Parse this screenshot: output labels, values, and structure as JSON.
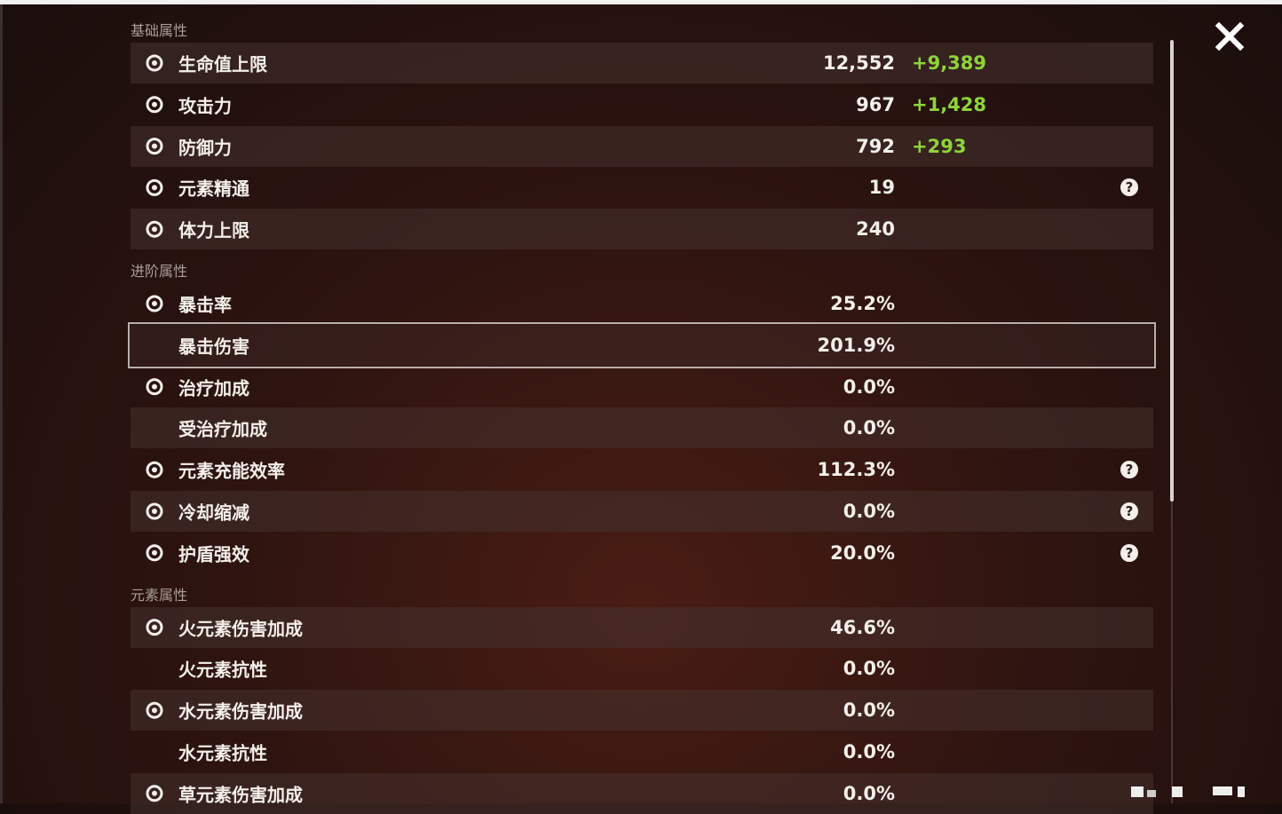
{
  "sections": [
    {
      "title": "基础属性",
      "rows": [
        {
          "name": "生命值上限",
          "value": "12,552",
          "bonus": "+9,389"
        },
        {
          "name": "攻击力",
          "value": "967",
          "bonus": "+1,428"
        },
        {
          "name": "防御力",
          "value": "792",
          "bonus": "+293"
        },
        {
          "name": "元素精通",
          "value": "19",
          "help": "?"
        },
        {
          "name": "体力上限",
          "value": "240"
        }
      ]
    },
    {
      "title": "进阶属性",
      "rows": [
        {
          "name": "暴击率",
          "value": "25.2%"
        },
        {
          "name": "暴击伤害",
          "value": "201.9%",
          "selected": true
        },
        {
          "name": "治疗加成",
          "value": "0.0%"
        },
        {
          "name": "受治疗加成",
          "value": "0.0%"
        },
        {
          "name": "元素充能效率",
          "value": "112.3%",
          "help": "?"
        },
        {
          "name": "冷却缩减",
          "value": "0.0%",
          "help": "?"
        },
        {
          "name": "护盾强效",
          "value": "20.0%",
          "help": "?"
        }
      ]
    },
    {
      "title": "元素属性",
      "rows": [
        {
          "name": "火元素伤害加成",
          "value": "46.6%"
        },
        {
          "name": "火元素抗性",
          "value": "0.0%"
        },
        {
          "name": "水元素伤害加成",
          "value": "0.0%"
        },
        {
          "name": "水元素抗性",
          "value": "0.0%"
        },
        {
          "name": "草元素伤害加成",
          "value": "0.0%"
        }
      ]
    }
  ]
}
